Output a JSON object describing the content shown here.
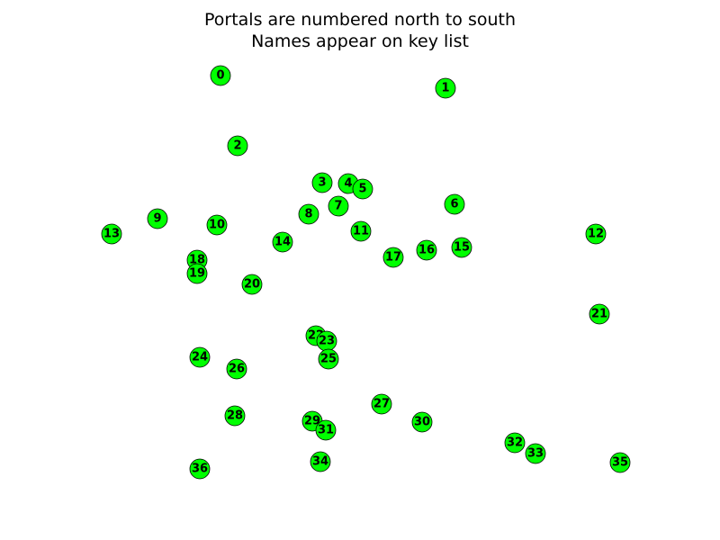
{
  "title": {
    "line1": "Portals are numbered north to south",
    "line2": "Names appear on key list"
  },
  "colors": {
    "portal_fill": "#00ff00",
    "portal_stroke": "#000000",
    "label": "#000000"
  },
  "portals": [
    {
      "id": "0"
    },
    {
      "id": "1"
    },
    {
      "id": "2"
    },
    {
      "id": "3"
    },
    {
      "id": "4"
    },
    {
      "id": "5"
    },
    {
      "id": "6"
    },
    {
      "id": "7"
    },
    {
      "id": "8"
    },
    {
      "id": "9"
    },
    {
      "id": "10"
    },
    {
      "id": "11"
    },
    {
      "id": "12"
    },
    {
      "id": "13"
    },
    {
      "id": "14"
    },
    {
      "id": "15"
    },
    {
      "id": "16"
    },
    {
      "id": "17"
    },
    {
      "id": "18"
    },
    {
      "id": "19"
    },
    {
      "id": "20"
    },
    {
      "id": "21"
    },
    {
      "id": "22"
    },
    {
      "id": "23"
    },
    {
      "id": "24"
    },
    {
      "id": "25"
    },
    {
      "id": "26"
    },
    {
      "id": "27"
    },
    {
      "id": "28"
    },
    {
      "id": "29"
    },
    {
      "id": "30"
    },
    {
      "id": "31"
    },
    {
      "id": "32"
    },
    {
      "id": "33"
    },
    {
      "id": "34"
    },
    {
      "id": "35"
    },
    {
      "id": "36"
    }
  ]
}
